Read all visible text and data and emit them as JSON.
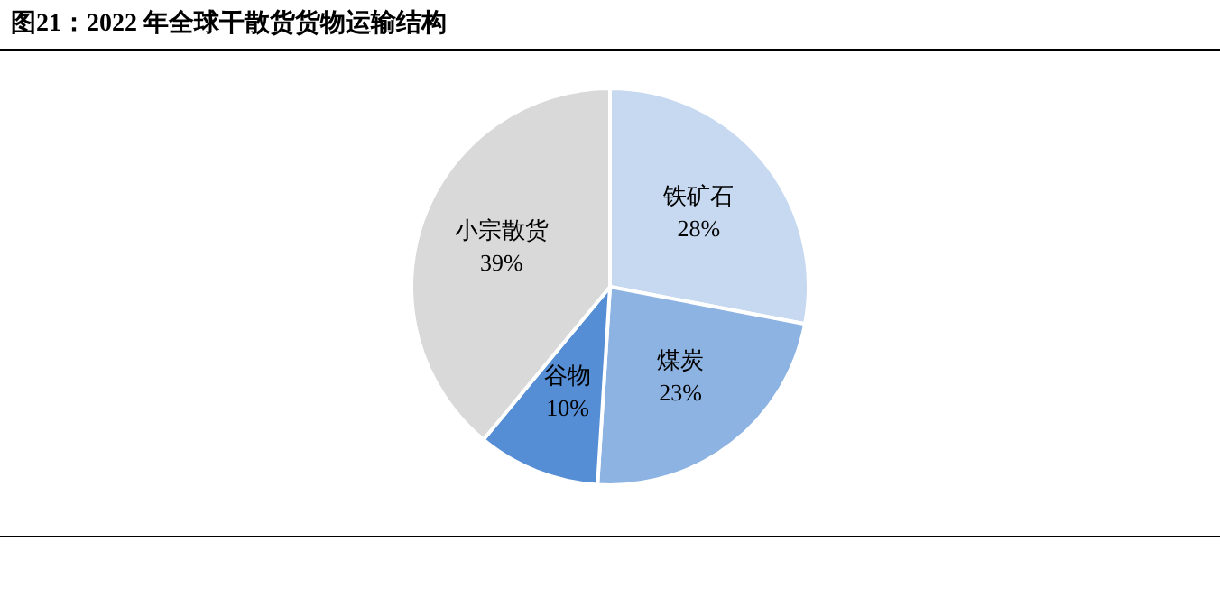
{
  "chart_data": {
    "type": "pie",
    "title": "图21：2022 年全球干散货货物运输结构",
    "categories": [
      "铁矿石",
      "煤炭",
      "谷物",
      "小宗散货"
    ],
    "values": [
      28,
      23,
      10,
      39
    ],
    "colors": [
      "#c6d9f1",
      "#8db3e2",
      "#558ed5",
      "#d9d9d9"
    ],
    "value_labels": [
      "28%",
      "23%",
      "10%",
      "39%"
    ],
    "legend": false
  }
}
